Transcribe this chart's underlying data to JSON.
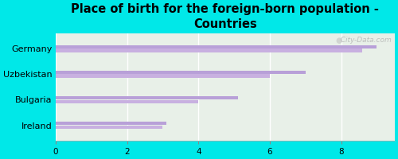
{
  "title": "Place of birth for the foreign-born population -\nCountries",
  "categories": [
    "Germany",
    "Uzbekistan",
    "Bulgaria",
    "Ireland"
  ],
  "bar1_values": [
    9.0,
    7.0,
    5.1,
    3.1
  ],
  "bar2_values": [
    8.6,
    6.0,
    4.0,
    3.0
  ],
  "bar_color1": "#b8a0d8",
  "bar_color2": "#c8b0e0",
  "background_color": "#00e8e8",
  "plot_bg_color": "#e8f0e8",
  "xlim": [
    0,
    9.5
  ],
  "xticks": [
    0,
    2,
    4,
    6,
    8
  ],
  "watermark": "  City-Data.com",
  "bar_height": 0.13,
  "bar_gap": 0.02,
  "title_fontsize": 10.5,
  "label_fontsize": 8,
  "tick_fontsize": 7.5
}
